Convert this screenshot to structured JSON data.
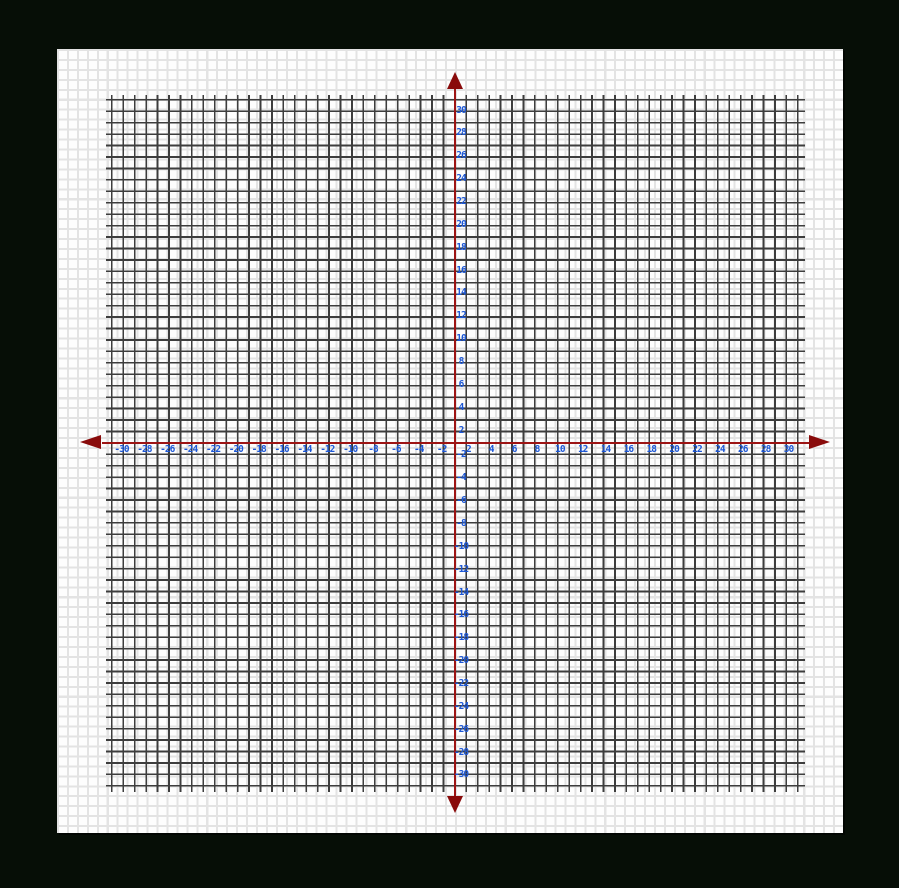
{
  "page": {
    "description": "Blank Cartesian coordinate plane drawn on graph paper, black surround, red axes with arrowheads, handwritten blue tick labels"
  },
  "colors": {
    "background": "#060e06",
    "paper": "#fdfdfd",
    "paper_grid_line": "#e3e3e3",
    "plot_grid_line": "#3d3d3d",
    "axis_line": "#9d1414",
    "arrowhead": "#890b0b",
    "tick_label": "#1c57d6"
  },
  "icons": {
    "left_arrow": "x-axis negative direction arrowhead",
    "right_arrow": "x-axis positive direction arrowhead",
    "up_arrow": "y-axis positive direction arrowhead",
    "down_arrow": "y-axis negative direction arrowhead"
  },
  "chart_data": {
    "type": "scatter",
    "title": "",
    "xlabel": "",
    "ylabel": "",
    "xlim": [
      -30,
      30
    ],
    "ylim": [
      -30,
      30
    ],
    "grid": "on",
    "grid_minor_step_units": 1,
    "tick_step": 2,
    "x_ticks": [
      -30,
      -28,
      -26,
      -24,
      -22,
      -20,
      -18,
      -16,
      -14,
      -12,
      -10,
      -8,
      -6,
      -4,
      -2,
      2,
      4,
      6,
      8,
      10,
      12,
      14,
      16,
      18,
      20,
      22,
      24,
      26,
      28,
      30
    ],
    "y_ticks": [
      30,
      28,
      26,
      24,
      22,
      20,
      18,
      16,
      14,
      12,
      10,
      8,
      6,
      4,
      2,
      -2,
      -4,
      -6,
      -8,
      -10,
      -12,
      -14,
      -16,
      -18,
      -20,
      -22,
      -24,
      -26,
      -28,
      -30
    ],
    "series": [],
    "notes": "Empty coordinate grid (no data points plotted); origin unlabeled; labels at every even integer; axes terminate in filled dark-red arrowheads on all four ends"
  }
}
